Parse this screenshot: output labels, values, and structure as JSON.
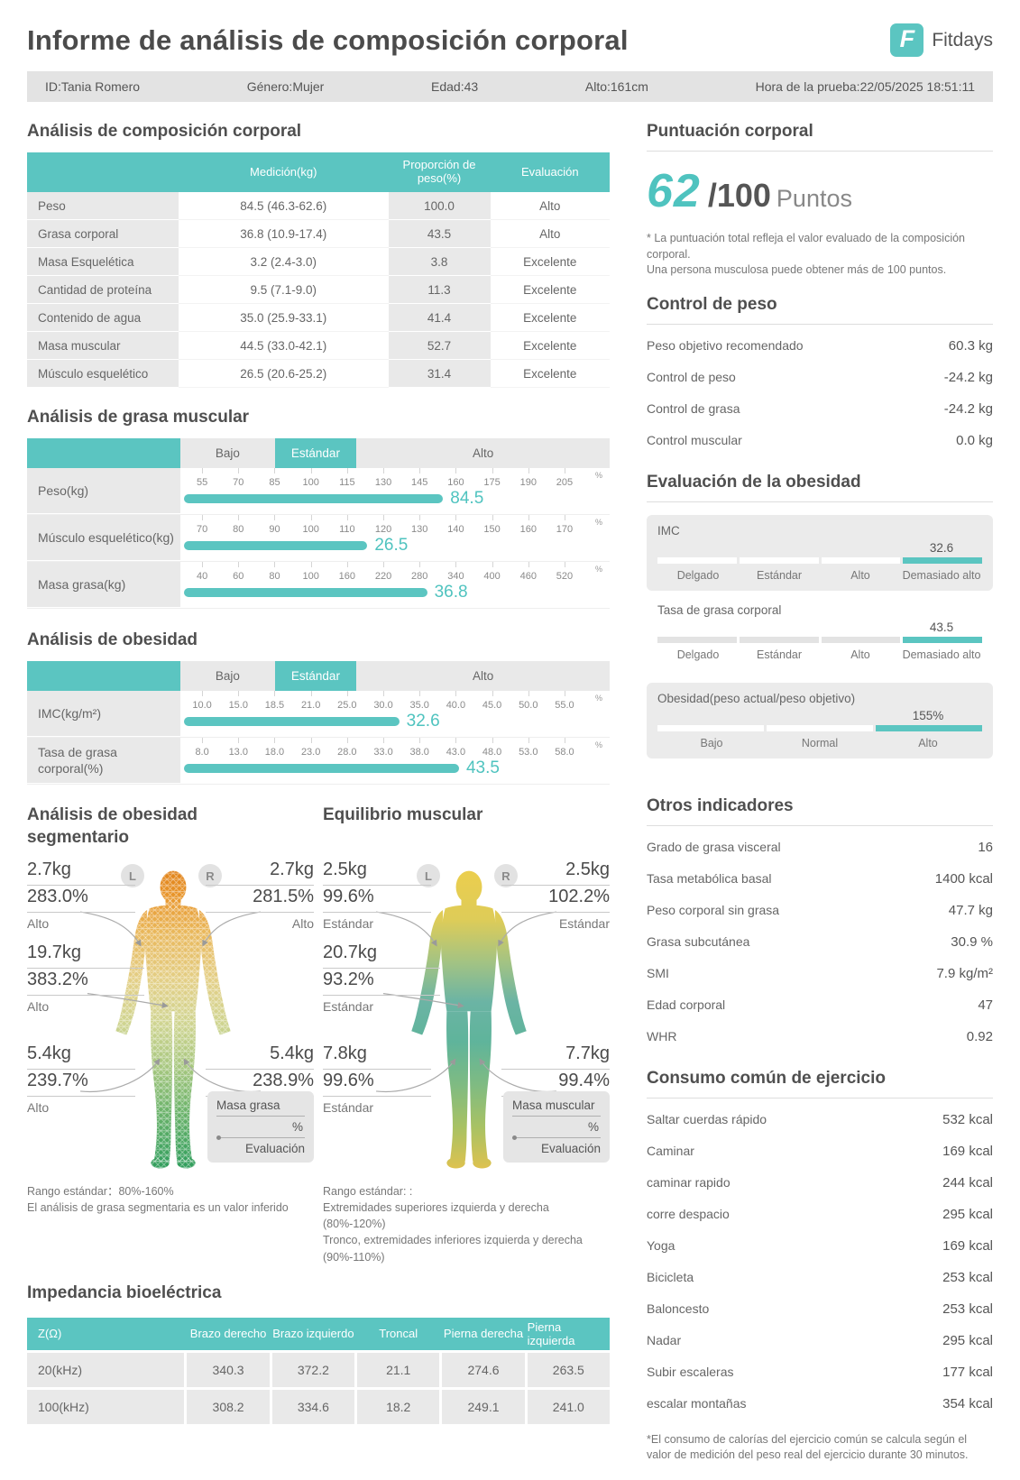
{
  "header": {
    "title": "Informe de análisis de composición corporal",
    "brand": "Fitdays",
    "logo_letter": "F",
    "info": [
      "ID:Tania Romero",
      "Género:Mujer",
      "Edad:43",
      "Alto:161cm",
      "Hora de la prueba:22/05/2025 18:51:11"
    ]
  },
  "composition": {
    "title": "Análisis de composición corporal",
    "col_headers": {
      "med": "Medición(kg)",
      "prop": "Proporción de peso(%)",
      "eval": "Evaluación"
    },
    "rows": [
      {
        "label": "Peso",
        "med": "84.5 (46.3-62.6)",
        "prop": "100.0",
        "eval": "Alto"
      },
      {
        "label": "Grasa corporal",
        "med": "36.8 (10.9-17.4)",
        "prop": "43.5",
        "eval": "Alto"
      },
      {
        "label": "Masa Esquelética",
        "med": "3.2 (2.4-3.0)",
        "prop": "3.8",
        "eval": "Excelente"
      },
      {
        "label": "Cantidad de proteína",
        "med": "9.5 (7.1-9.0)",
        "prop": "11.3",
        "eval": "Excelente"
      },
      {
        "label": "Contenido de agua",
        "med": "35.0 (25.9-33.1)",
        "prop": "41.4",
        "eval": "Excelente"
      },
      {
        "label": "Masa muscular",
        "med": "44.5 (33.0-42.1)",
        "prop": "52.7",
        "eval": "Excelente"
      },
      {
        "label": "Músculo esquelético",
        "med": "26.5 (20.6-25.2)",
        "prop": "31.4",
        "eval": "Excelente"
      }
    ]
  },
  "scale_header": {
    "low": "Bajo",
    "std": "Estándar",
    "high": "Alto"
  },
  "muscle_fat": {
    "title": "Análisis de grasa muscular",
    "rows": [
      {
        "label": "Peso(kg)",
        "unit": "%",
        "value": "84.5",
        "bar_pct": 65,
        "ticks": [
          "55",
          "70",
          "85",
          "100",
          "115",
          "130",
          "145",
          "160",
          "175",
          "190",
          "205"
        ]
      },
      {
        "label": "Músculo esquelético(kg)",
        "unit": "%",
        "value": "26.5",
        "bar_pct": 46,
        "ticks": [
          "70",
          "80",
          "90",
          "100",
          "110",
          "120",
          "130",
          "140",
          "150",
          "160",
          "170"
        ]
      },
      {
        "label": "Masa grasa(kg)",
        "unit": "%",
        "value": "36.8",
        "bar_pct": 61,
        "ticks": [
          "40",
          "60",
          "80",
          "100",
          "160",
          "220",
          "280",
          "340",
          "400",
          "460",
          "520"
        ]
      }
    ]
  },
  "obesity": {
    "title": "Análisis de obesidad",
    "rows": [
      {
        "label": "IMC(kg/m²)",
        "unit": "%",
        "value": "32.6",
        "bar_pct": 54,
        "ticks": [
          "10.0",
          "15.0",
          "18.5",
          "21.0",
          "25.0",
          "30.0",
          "35.0",
          "40.0",
          "45.0",
          "50.0",
          "55.0"
        ]
      },
      {
        "label": "Tasa de grasa corporal(%)",
        "unit": "%",
        "value": "43.5",
        "bar_pct": 69,
        "ticks": [
          "8.0",
          "13.0",
          "18.0",
          "23.0",
          "28.0",
          "33.0",
          "38.0",
          "43.0",
          "48.0",
          "53.0",
          "58.0"
        ]
      }
    ]
  },
  "segmental_fat": {
    "title": "Análisis de obesidad segmentario",
    "badge_left": "L",
    "badge_right": "R",
    "labels": {
      "left_arm": {
        "kg": "2.7kg",
        "pct": "283.0%",
        "eval": "Alto"
      },
      "right_arm": {
        "kg": "2.7kg",
        "pct": "281.5%",
        "eval": "Alto"
      },
      "trunk": {
        "kg": "19.7kg",
        "pct": "383.2%",
        "eval": "Alto"
      },
      "left_leg": {
        "kg": "5.4kg",
        "pct": "239.7%",
        "eval": "Alto"
      },
      "right_leg": {
        "kg": "5.4kg",
        "pct": "238.9%",
        "eval": "Alto"
      }
    },
    "legend": {
      "l1": "Masa grasa",
      "l2": "%",
      "l3": "Evaluación"
    },
    "notes": [
      "Rango estándar：80%-160%",
      "El análisis de grasa segmentaria es un valor inferido"
    ]
  },
  "muscle_balance": {
    "title": "Equilibrio muscular",
    "badge_left": "L",
    "badge_right": "R",
    "labels": {
      "left_arm": {
        "kg": "2.5kg",
        "pct": "99.6%",
        "eval": "Estándar"
      },
      "right_arm": {
        "kg": "2.5kg",
        "pct": "102.2%",
        "eval": "Estándar"
      },
      "trunk": {
        "kg": "20.7kg",
        "pct": "93.2%",
        "eval": "Estándar"
      },
      "left_leg": {
        "kg": "7.8kg",
        "pct": "99.6%",
        "eval": "Estándar"
      },
      "right_leg": {
        "kg": "7.7kg",
        "pct": "99.4%",
        "eval": "Estándar"
      }
    },
    "legend": {
      "l1": "Masa muscular",
      "l2": "%",
      "l3": "Evaluación"
    },
    "notes": [
      "Rango estándar: :",
      "Extremidades superiores izquierda y derecha",
      "(80%-120%)",
      "Tronco, extremidades inferiores izquierda y derecha",
      "(90%-110%)"
    ]
  },
  "impedance": {
    "title": "Impedancia bioeléctrica",
    "corner": "Z(Ω)",
    "headers": [
      "Brazo derecho",
      "Brazo izquierdo",
      "Troncal",
      "Pierna derecha",
      "Pierna izquierda"
    ],
    "rows": [
      {
        "label": "20(kHz)",
        "values": [
          "340.3",
          "372.2",
          "21.1",
          "274.6",
          "263.5"
        ]
      },
      {
        "label": "100(kHz)",
        "values": [
          "308.2",
          "334.6",
          "18.2",
          "249.1",
          "241.0"
        ]
      }
    ]
  },
  "score": {
    "title": "Puntuación corporal",
    "value": "62",
    "denom": "/100",
    "unit": "Puntos",
    "notes": [
      "* La puntuación total refleja el valor evaluado de la composición corporal.",
      "Una persona musculosa puede obtener más de 100 puntos."
    ]
  },
  "weight_control": {
    "title": "Control de peso",
    "rows": [
      {
        "label": "Peso objetivo recomendado",
        "value": "60.3 kg"
      },
      {
        "label": "Control de peso",
        "value": "-24.2 kg"
      },
      {
        "label": "Control de grasa",
        "value": "-24.2 kg"
      },
      {
        "label": "Control muscular",
        "value": "0.0 kg"
      }
    ]
  },
  "obesity_eval": {
    "title": "Evaluación de la obesidad",
    "bars": [
      {
        "label": "IMC",
        "value": "32.6",
        "segments": [
          {
            "label": "Delgado",
            "state": "inactive"
          },
          {
            "label": "Estándar",
            "state": "inactive"
          },
          {
            "label": "Alto",
            "state": "inactive"
          },
          {
            "label": "Demasiado alto",
            "state": "active"
          }
        ]
      },
      {
        "label": "Tasa de grasa corporal",
        "value": "43.5",
        "segments": [
          {
            "label": "Delgado",
            "state": "inactive"
          },
          {
            "label": "Estándar",
            "state": "inactive"
          },
          {
            "label": "Alto",
            "state": "inactive"
          },
          {
            "label": "Demasiado alto",
            "state": "active"
          }
        ]
      },
      {
        "label": "Obesidad(peso actual/peso objetivo)",
        "value": "155%",
        "segments": [
          {
            "label": "Bajo",
            "state": "inactive"
          },
          {
            "label": "Normal",
            "state": "inactive"
          },
          {
            "label": "Alto",
            "state": "active"
          }
        ]
      }
    ]
  },
  "other_indicators": {
    "title": "Otros indicadores",
    "rows": [
      {
        "label": "Grado de grasa visceral",
        "value": "16"
      },
      {
        "label": "Tasa metabólica basal",
        "value": "1400 kcal"
      },
      {
        "label": "Peso corporal sin grasa",
        "value": "47.7 kg"
      },
      {
        "label": "Grasa subcutánea",
        "value": "30.9 %"
      },
      {
        "label": "SMI",
        "value": "7.9 kg/m²"
      },
      {
        "label": "Edad corporal",
        "value": "47"
      },
      {
        "label": "WHR",
        "value": "0.92"
      }
    ]
  },
  "exercise": {
    "title": "Consumo común de ejercicio",
    "rows": [
      {
        "label": "Saltar cuerdas rápido",
        "value": "532 kcal"
      },
      {
        "label": "Caminar",
        "value": "169 kcal"
      },
      {
        "label": "caminar rapido",
        "value": "244 kcal"
      },
      {
        "label": "corre despacio",
        "value": "295 kcal"
      },
      {
        "label": "Yoga",
        "value": "169 kcal"
      },
      {
        "label": "Bicicleta",
        "value": "253 kcal"
      },
      {
        "label": "Baloncesto",
        "value": "253 kcal"
      },
      {
        "label": "Nadar",
        "value": "295 kcal"
      },
      {
        "label": "Subir escaleras",
        "value": "177 kcal"
      },
      {
        "label": "escalar montañas",
        "value": "354 kcal"
      }
    ],
    "note": "*El consumo de calorías del ejercicio común se calcula según el valor de medición del peso real del ejercicio durante 30 minutos."
  },
  "colors": {
    "accent": "#5BC5C1",
    "value_text": "#4FC3BF",
    "cell_gray": "#E9E9E9"
  }
}
